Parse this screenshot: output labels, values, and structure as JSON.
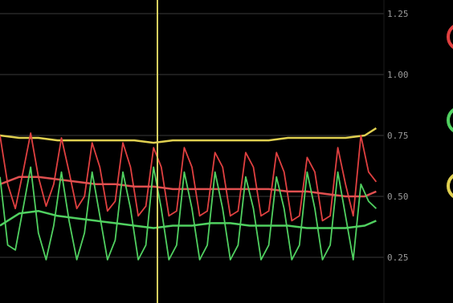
{
  "chart_data": {
    "type": "line",
    "title": "",
    "xlabel": "",
    "ylabel": "",
    "ylim": [
      0.1,
      1.25
    ],
    "xlim": [
      0,
      100
    ],
    "y_ticks": [
      "1.25",
      "1.00",
      "0.75",
      "0.50",
      "0.25"
    ],
    "y_tick_values": [
      1.25,
      1.0,
      0.75,
      0.5,
      0.25
    ],
    "grid": true,
    "cursor_x": 41,
    "cursor_color": "#d8d060",
    "legend_position": "right",
    "series": [
      {
        "color": "#e0d050",
        "x": [
          0,
          5,
          10,
          15,
          20,
          25,
          30,
          35,
          40,
          45,
          50,
          55,
          60,
          65,
          70,
          75,
          80,
          85,
          90,
          95,
          98
        ],
        "values": [
          0.75,
          0.74,
          0.74,
          0.73,
          0.73,
          0.73,
          0.73,
          0.73,
          0.72,
          0.73,
          0.73,
          0.73,
          0.73,
          0.73,
          0.73,
          0.74,
          0.74,
          0.74,
          0.74,
          0.75,
          0.78
        ]
      },
      {
        "color": "#e04040",
        "x": [
          0,
          2,
          4,
          6,
          8,
          10,
          12,
          14,
          16,
          18,
          20,
          22,
          24,
          26,
          28,
          30,
          32,
          34,
          36,
          38,
          40,
          42,
          44,
          46,
          48,
          50,
          52,
          54,
          56,
          58,
          60,
          62,
          64,
          66,
          68,
          70,
          72,
          74,
          76,
          78,
          80,
          82,
          84,
          86,
          88,
          90,
          92,
          94,
          96,
          98
        ],
        "values": [
          0.75,
          0.55,
          0.45,
          0.6,
          0.76,
          0.58,
          0.46,
          0.55,
          0.74,
          0.6,
          0.45,
          0.5,
          0.72,
          0.62,
          0.44,
          0.48,
          0.72,
          0.62,
          0.42,
          0.46,
          0.7,
          0.62,
          0.42,
          0.44,
          0.7,
          0.62,
          0.42,
          0.44,
          0.68,
          0.62,
          0.42,
          0.44,
          0.68,
          0.62,
          0.42,
          0.44,
          0.68,
          0.6,
          0.4,
          0.42,
          0.66,
          0.6,
          0.4,
          0.42,
          0.7,
          0.55,
          0.42,
          0.75,
          0.6,
          0.56
        ]
      },
      {
        "color": "#e05050",
        "x": [
          0,
          5,
          10,
          15,
          20,
          25,
          30,
          35,
          40,
          45,
          50,
          55,
          60,
          65,
          70,
          75,
          80,
          85,
          90,
          95,
          98
        ],
        "values": [
          0.55,
          0.58,
          0.58,
          0.57,
          0.56,
          0.55,
          0.55,
          0.54,
          0.54,
          0.53,
          0.53,
          0.53,
          0.53,
          0.53,
          0.53,
          0.52,
          0.52,
          0.51,
          0.5,
          0.5,
          0.52
        ]
      },
      {
        "color": "#50d060",
        "x": [
          0,
          2,
          4,
          6,
          8,
          10,
          12,
          14,
          16,
          18,
          20,
          22,
          24,
          26,
          28,
          30,
          32,
          34,
          36,
          38,
          40,
          42,
          44,
          46,
          48,
          50,
          52,
          54,
          56,
          58,
          60,
          62,
          64,
          66,
          68,
          70,
          72,
          74,
          76,
          78,
          80,
          82,
          84,
          86,
          88,
          90,
          92,
          94,
          96,
          98
        ],
        "values": [
          0.58,
          0.3,
          0.28,
          0.45,
          0.62,
          0.35,
          0.24,
          0.38,
          0.6,
          0.4,
          0.24,
          0.35,
          0.6,
          0.42,
          0.24,
          0.32,
          0.6,
          0.45,
          0.24,
          0.3,
          0.62,
          0.45,
          0.24,
          0.3,
          0.6,
          0.45,
          0.24,
          0.3,
          0.6,
          0.45,
          0.24,
          0.3,
          0.58,
          0.45,
          0.24,
          0.3,
          0.58,
          0.45,
          0.24,
          0.3,
          0.6,
          0.45,
          0.24,
          0.3,
          0.6,
          0.42,
          0.24,
          0.55,
          0.48,
          0.45
        ]
      },
      {
        "color": "#50d060",
        "x": [
          0,
          5,
          10,
          15,
          20,
          25,
          30,
          35,
          40,
          45,
          50,
          55,
          60,
          65,
          70,
          75,
          80,
          85,
          90,
          95,
          98
        ],
        "values": [
          0.38,
          0.43,
          0.44,
          0.42,
          0.41,
          0.4,
          0.39,
          0.38,
          0.37,
          0.38,
          0.38,
          0.39,
          0.39,
          0.38,
          0.38,
          0.38,
          0.37,
          0.37,
          0.37,
          0.38,
          0.4
        ]
      }
    ],
    "legend_glyphs": [
      {
        "name": "red-series-legend-icon",
        "color": "#e04040"
      },
      {
        "name": "green-series-legend-icon",
        "color": "#50d060"
      },
      {
        "name": "yellow-series-legend-icon",
        "color": "#e0d050"
      }
    ]
  }
}
